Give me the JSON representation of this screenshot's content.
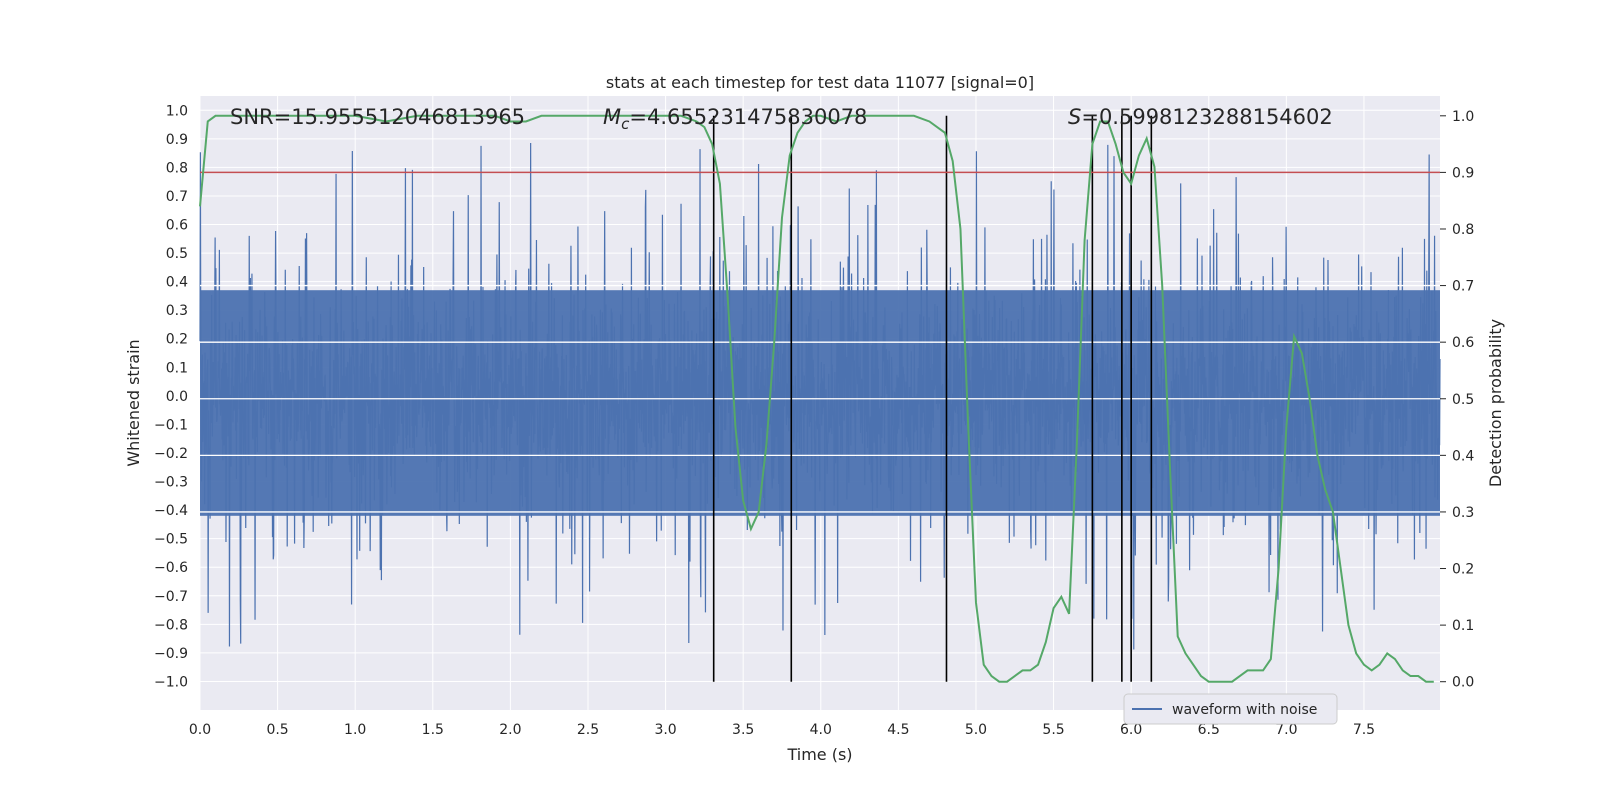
{
  "chart_data": {
    "type": "line",
    "title": "stats at each timestep for test data 11077 [signal=0]",
    "xlabel": "Time (s)",
    "ylabel": "Whitened strain",
    "ylabel_right": "Detection probability",
    "xlim": [
      0.0,
      7.99
    ],
    "ylim": [
      -1.1,
      1.05
    ],
    "ylim_right": [
      -0.05,
      1.035
    ],
    "x_ticks": [
      "0.0",
      "0.5",
      "1.0",
      "1.5",
      "2.0",
      "2.5",
      "3.0",
      "3.5",
      "4.0",
      "4.5",
      "5.0",
      "5.5",
      "6.0",
      "6.5",
      "7.0",
      "7.5"
    ],
    "y_ticks": [
      "1.0",
      "0.9",
      "0.8",
      "0.7",
      "0.6",
      "0.5",
      "0.4",
      "0.3",
      "0.2",
      "0.1",
      "0.0",
      "−0.1",
      "−0.2",
      "−0.3",
      "−0.4",
      "−0.5",
      "−0.6",
      "−0.7",
      "−0.8",
      "−0.9",
      "−1.0"
    ],
    "y_right_ticks": [
      "1.0",
      "0.9",
      "0.8",
      "0.7",
      "0.6",
      "0.5",
      "0.4",
      "0.3",
      "0.2",
      "0.1",
      "0.0"
    ],
    "annotations": {
      "snr": "SNR=15.955512046813965",
      "mc_symbol": "M",
      "mc_sub": "c",
      "mc_value": "=4.655231475830078",
      "s_symbol": "S",
      "s_value": "=0.5998123288154602"
    },
    "legend": {
      "label": "waveform with noise",
      "placement": "lower-right"
    },
    "threshold": {
      "value": 0.9,
      "axis": "right",
      "color": "#c44e52"
    },
    "event_markers_x": [
      3.31,
      3.81,
      4.81,
      5.75,
      5.94,
      6.0,
      6.13
    ],
    "waveform": {
      "name": "waveform with noise",
      "color": "#4c72b0",
      "seed": 11077,
      "samples": 3200,
      "envelope_abs": 0.55,
      "typical_abs_max": 0.45,
      "peak_max": 0.9,
      "peak_min": -1.0
    },
    "detection_probability": {
      "name": "Detection probability",
      "color": "#55a868",
      "x": [
        0.0,
        0.05,
        0.1,
        0.2,
        0.4,
        0.6,
        0.8,
        1.0,
        1.2,
        1.4,
        1.6,
        1.8,
        1.9,
        2.0,
        2.1,
        2.2,
        2.4,
        2.6,
        2.8,
        3.0,
        3.1,
        3.2,
        3.25,
        3.3,
        3.35,
        3.4,
        3.45,
        3.5,
        3.55,
        3.6,
        3.65,
        3.7,
        3.75,
        3.8,
        3.85,
        3.9,
        3.95,
        4.0,
        4.1,
        4.2,
        4.3,
        4.4,
        4.5,
        4.6,
        4.7,
        4.8,
        4.85,
        4.9,
        4.95,
        5.0,
        5.05,
        5.1,
        5.15,
        5.2,
        5.25,
        5.3,
        5.35,
        5.4,
        5.45,
        5.5,
        5.55,
        5.6,
        5.65,
        5.7,
        5.75,
        5.8,
        5.85,
        5.9,
        5.95,
        6.0,
        6.05,
        6.1,
        6.15,
        6.2,
        6.25,
        6.3,
        6.35,
        6.4,
        6.45,
        6.5,
        6.55,
        6.6,
        6.65,
        6.7,
        6.75,
        6.8,
        6.85,
        6.9,
        6.95,
        7.0,
        7.05,
        7.1,
        7.15,
        7.2,
        7.25,
        7.3,
        7.35,
        7.4,
        7.45,
        7.5,
        7.55,
        7.6,
        7.65,
        7.7,
        7.75,
        7.8,
        7.85,
        7.9,
        7.95
      ],
      "values": [
        0.84,
        0.99,
        1.0,
        1.0,
        1.0,
        1.0,
        1.0,
        1.0,
        0.99,
        1.0,
        1.0,
        1.0,
        1.0,
        0.99,
        0.99,
        1.0,
        1.0,
        1.0,
        1.0,
        1.0,
        1.0,
        0.99,
        0.98,
        0.95,
        0.88,
        0.68,
        0.45,
        0.32,
        0.27,
        0.3,
        0.42,
        0.6,
        0.82,
        0.93,
        0.97,
        0.99,
        1.0,
        1.0,
        0.99,
        1.0,
        1.0,
        1.0,
        1.0,
        1.0,
        0.99,
        0.97,
        0.92,
        0.8,
        0.45,
        0.14,
        0.03,
        0.01,
        0.0,
        0.0,
        0.01,
        0.02,
        0.02,
        0.03,
        0.07,
        0.13,
        0.15,
        0.12,
        0.42,
        0.78,
        0.95,
        0.99,
        0.99,
        0.95,
        0.9,
        0.88,
        0.93,
        0.96,
        0.91,
        0.7,
        0.38,
        0.08,
        0.05,
        0.03,
        0.01,
        0.0,
        0.0,
        0.0,
        0.0,
        0.01,
        0.02,
        0.02,
        0.02,
        0.04,
        0.2,
        0.45,
        0.61,
        0.58,
        0.5,
        0.4,
        0.34,
        0.3,
        0.2,
        0.1,
        0.05,
        0.03,
        0.02,
        0.03,
        0.05,
        0.04,
        0.02,
        0.01,
        0.01,
        0.0,
        0.0
      ]
    }
  }
}
